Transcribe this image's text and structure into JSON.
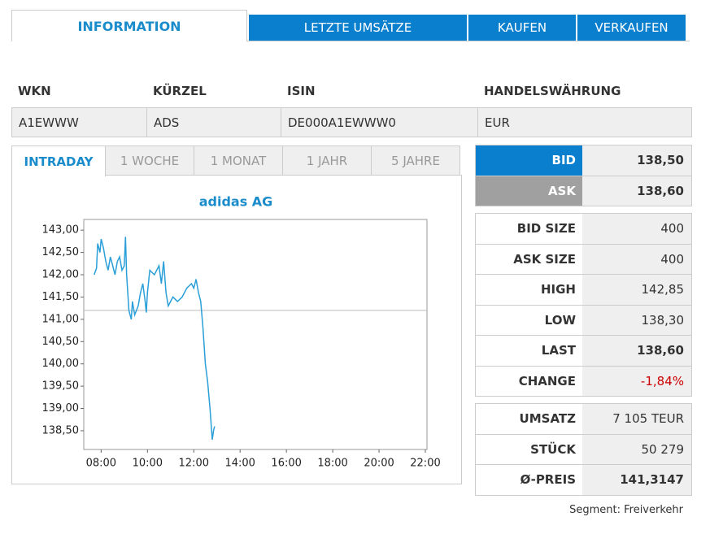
{
  "tabs": [
    "INFORMATION",
    "LETZTE UMSÄTZE",
    "KAUFEN",
    "VERKAUFEN"
  ],
  "active_tab": 0,
  "security": {
    "headers": [
      "WKN",
      "KÜRZEL",
      "ISIN",
      "HANDELSWÄHRUNG"
    ],
    "values": [
      "A1EWWW",
      "ADS",
      "DE000A1EWWW0",
      "EUR"
    ]
  },
  "ranges": [
    "INTRADAY",
    "1 WOCHE",
    "1 MONAT",
    "1 JAHR",
    "5 JAHRE"
  ],
  "active_range": 0,
  "chart_data": {
    "type": "line",
    "title": "adidas AG",
    "color": "#2a9fd8",
    "x": [
      7.7,
      7.8,
      7.85,
      7.95,
      8.0,
      8.1,
      8.2,
      8.3,
      8.4,
      8.5,
      8.6,
      8.7,
      8.8,
      8.9,
      9.0,
      9.05,
      9.1,
      9.15,
      9.2,
      9.3,
      9.35,
      9.45,
      9.6,
      9.7,
      9.8,
      9.9,
      9.95,
      10.0,
      10.1,
      10.3,
      10.5,
      10.6,
      10.7,
      10.8,
      10.9,
      11.1,
      11.3,
      11.5,
      11.7,
      11.9,
      12.0,
      12.1,
      12.2,
      12.3,
      12.4,
      12.5,
      12.6,
      12.7,
      12.8,
      12.85,
      12.9
    ],
    "values": [
      142.0,
      142.15,
      142.7,
      142.5,
      142.8,
      142.6,
      142.3,
      142.1,
      142.4,
      142.2,
      142.0,
      142.3,
      142.4,
      142.1,
      142.2,
      142.85,
      142.0,
      141.6,
      141.2,
      141.0,
      141.4,
      141.1,
      141.3,
      141.6,
      141.8,
      141.4,
      141.15,
      141.6,
      142.1,
      142.0,
      142.2,
      141.8,
      142.3,
      141.6,
      141.3,
      141.5,
      141.4,
      141.5,
      141.7,
      141.8,
      141.7,
      141.9,
      141.6,
      141.4,
      140.8,
      140.0,
      139.6,
      139.0,
      138.3,
      138.5,
      138.6
    ],
    "reference_line": 141.2,
    "xlim": [
      7.25,
      22.07
    ],
    "ylim": [
      138.08,
      143.24
    ],
    "xticks": [
      {
        "value": 8,
        "label": "08:00"
      },
      {
        "value": 10,
        "label": "10:00"
      },
      {
        "value": 12,
        "label": "12:00"
      },
      {
        "value": 14,
        "label": "14:00"
      },
      {
        "value": 16,
        "label": "16:00"
      },
      {
        "value": 18,
        "label": "18:00"
      },
      {
        "value": 20,
        "label": "20:00"
      },
      {
        "value": 22,
        "label": "22:00"
      }
    ],
    "yticks": [
      {
        "value": 138.5,
        "label": "138,50"
      },
      {
        "value": 139,
        "label": "139,00"
      },
      {
        "value": 139.5,
        "label": "139,50"
      },
      {
        "value": 140,
        "label": "140,00"
      },
      {
        "value": 140.5,
        "label": "140,50"
      },
      {
        "value": 141,
        "label": "141,00"
      },
      {
        "value": 141.5,
        "label": "141,50"
      },
      {
        "value": 142,
        "label": "142,00"
      },
      {
        "value": 142.5,
        "label": "142,50"
      },
      {
        "value": 143,
        "label": "143,00"
      }
    ]
  },
  "quotes": [
    [
      {
        "label": "BID",
        "value": "138,50",
        "highlight": "#0a7fce",
        "bold": true
      },
      {
        "label": "ASK",
        "value": "138,60",
        "highlight": "#a0a0a0",
        "bold": true
      }
    ],
    [
      {
        "label": "BID SIZE",
        "value": "400"
      },
      {
        "label": "ASK SIZE",
        "value": "400"
      },
      {
        "label": "HIGH",
        "value": "142,85"
      },
      {
        "label": "LOW",
        "value": "138,30"
      },
      {
        "label": "LAST",
        "value": "138,60",
        "bold": true
      },
      {
        "label": "CHANGE",
        "value": "-1,84%",
        "color": "#cc0000"
      }
    ],
    [
      {
        "label": "UMSATZ",
        "value": "7 105 TEUR"
      },
      {
        "label": "STÜCK",
        "value": "50 279"
      },
      {
        "label": "Ø-PREIS",
        "value": "141,3147",
        "bold": true
      }
    ]
  ],
  "segment": "Segment: Freiverkehr"
}
